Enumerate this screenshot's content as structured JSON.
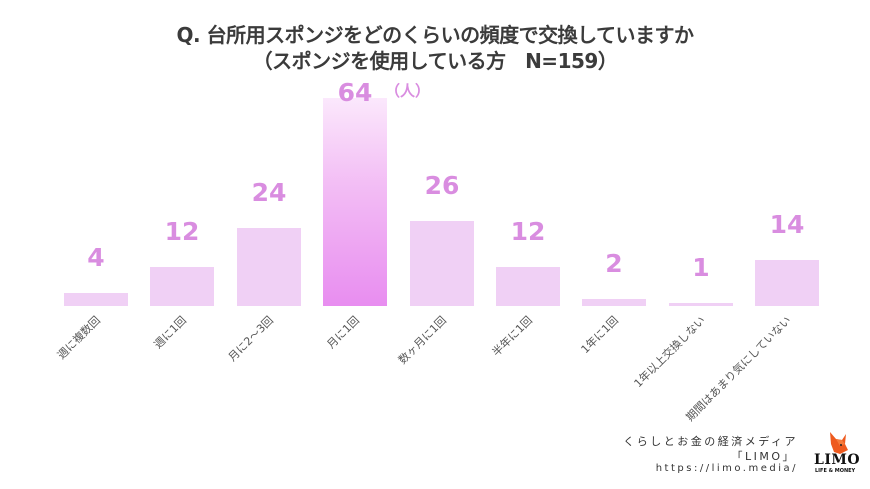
{
  "title": {
    "line1": "Q. 台所用スポンジをどのくらいの頻度で交換していますか",
    "line2": "（スポンジを使用している方　N=159）"
  },
  "unit_label": "（人）",
  "colors": {
    "bar": "#f0d0f5",
    "bar_highlight_bottom": "#e88df0",
    "bar_highlight_top": "#fbe8fc",
    "value_label": "#d98de0",
    "title": "#3b3b3b"
  },
  "chart_data": {
    "type": "bar",
    "title": "Q. 台所用スポンジをどのくらいの頻度で交換していますか（スポンジを使用している方　N=159）",
    "xlabel": "",
    "ylabel": "",
    "unit": "人",
    "categories": [
      "週に複数回",
      "週に1回",
      "月に2〜3回",
      "月に1回",
      "数ヶ月に1回",
      "半年に1回",
      "1年に1回",
      "1年以上交換しない",
      "期間はあまり気にしていない"
    ],
    "values": [
      4,
      12,
      24,
      64,
      26,
      12,
      2,
      1,
      14
    ],
    "highlight_index": 3,
    "ylim": [
      0,
      64
    ],
    "grid": false,
    "legend": "none",
    "labels": {
      "values": [
        "4",
        "12",
        "24",
        "64",
        "26",
        "12",
        "2",
        "1",
        "14"
      ]
    }
  },
  "footer": {
    "tagline": "くらしとお金の経済メディア",
    "brand_quoted": "「LIMO」",
    "url": "https://limo.media/",
    "logo_text": "LIMO",
    "logo_subtext": "LIFE & MONEY"
  }
}
